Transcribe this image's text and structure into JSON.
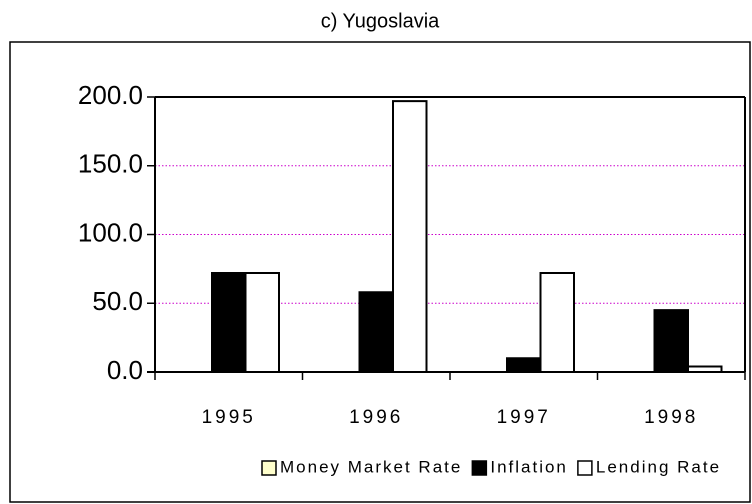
{
  "chart_data": {
    "type": "bar",
    "title": "c) Yugoslavia",
    "categories": [
      "1995",
      "1996",
      "1997",
      "1998"
    ],
    "series": [
      {
        "name": "Money Market Rate",
        "color": "#ffffcc",
        "values": [
          null,
          null,
          null,
          null
        ]
      },
      {
        "name": "Inflation",
        "color": "#000000",
        "values": [
          72,
          58,
          10,
          45
        ]
      },
      {
        "name": "Lending Rate",
        "color": "#ffffff",
        "values": [
          72,
          197,
          72,
          4
        ]
      }
    ],
    "ylim": [
      0,
      200
    ],
    "yticks": [
      {
        "value": 0,
        "label": "0.0"
      },
      {
        "value": 50,
        "label": "50.0"
      },
      {
        "value": 100,
        "label": "100.0"
      },
      {
        "value": 150,
        "label": "150.0"
      },
      {
        "value": 200,
        "label": "200.0"
      }
    ],
    "grid": true,
    "grid_color": "#cc00cc",
    "legend": "bottom"
  }
}
